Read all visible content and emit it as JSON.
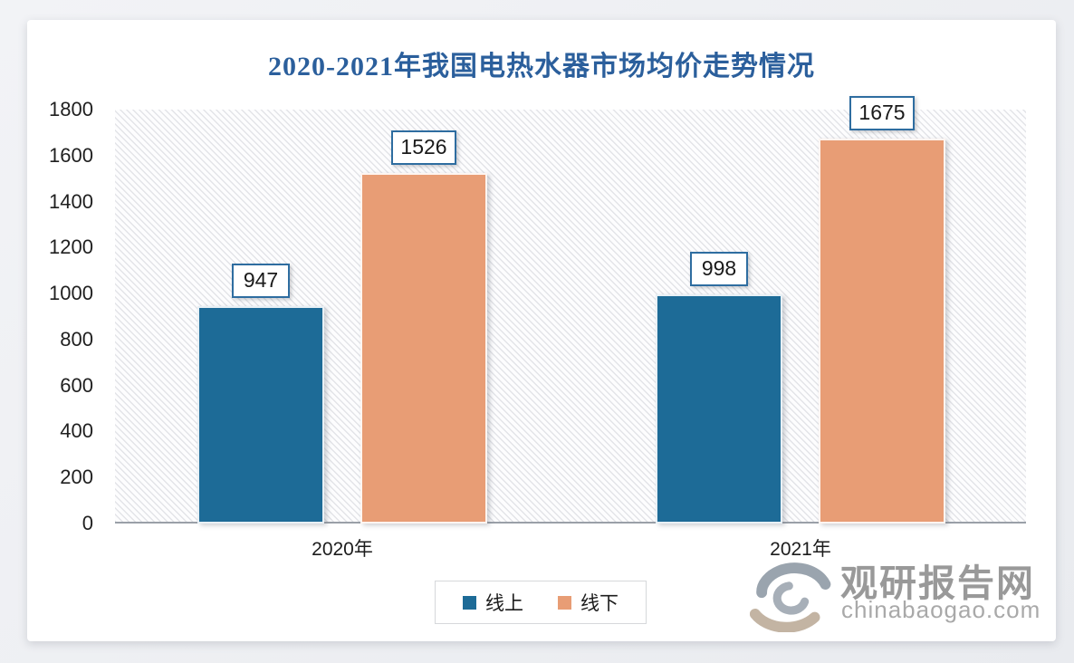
{
  "title": {
    "text": "2020-2021年我国电热水器市场均价走势情况",
    "color": "#2b5f9c"
  },
  "watermark": {
    "logo_icon": "guanyan-swirl-logo",
    "name": "观研报告网",
    "domain": "chinabaogao.com",
    "name_color": "#999999",
    "domain_color": "#a9a9a9",
    "logo_colors": {
      "top_arc": "#9aa4ae",
      "bottom_arc": "#c3b4a3",
      "inner_hook": "#a7afb8"
    }
  },
  "chart_data": {
    "type": "bar",
    "title": "2020-2021年我国电热水器市场均价走势情况",
    "categories": [
      "2020年",
      "2021年"
    ],
    "series": [
      {
        "name": "线上",
        "color": "#1d6b97",
        "values": [
          947,
          998
        ]
      },
      {
        "name": "线下",
        "color": "#e89d75",
        "values": [
          1526,
          1675
        ]
      }
    ],
    "ylim": [
      0,
      1800
    ],
    "ytick_step": 200,
    "xlabel": "",
    "ylabel": "",
    "grid": false,
    "plot_background": "diagonal-hatch",
    "legend_position": "bottom",
    "value_labels": true,
    "value_label_style": "boxed"
  }
}
